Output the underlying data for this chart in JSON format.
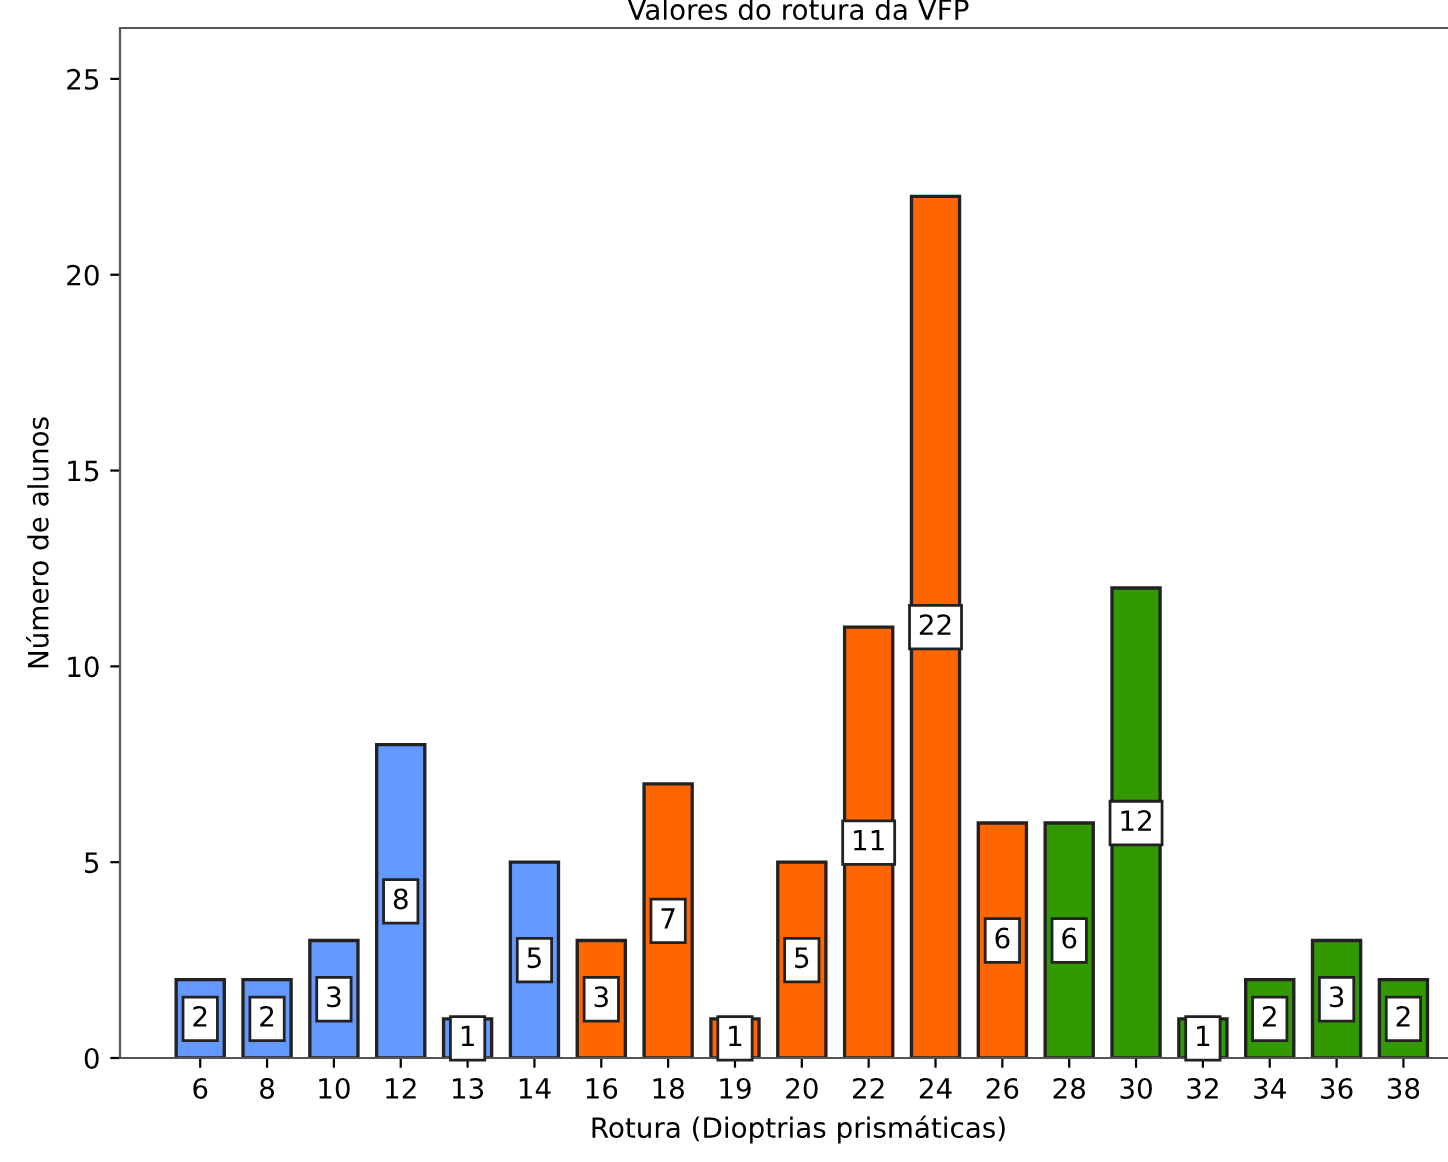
{
  "chart_data": {
    "type": "bar",
    "title": "Valores do rotura da VFP",
    "xlabel": "Rotura (Dioptrias prismáticas)",
    "ylabel": "Número de alunos",
    "categories": [
      "6",
      "8",
      "10",
      "12",
      "13",
      "14",
      "16",
      "18",
      "19",
      "20",
      "22",
      "24",
      "26",
      "28",
      "30",
      "32",
      "34",
      "36",
      "38"
    ],
    "values": [
      2,
      2,
      3,
      8,
      1,
      5,
      3,
      7,
      1,
      5,
      11,
      22,
      6,
      6,
      12,
      1,
      2,
      3,
      2
    ],
    "colors": [
      "#6699ff",
      "#6699ff",
      "#6699ff",
      "#6699ff",
      "#6699ff",
      "#6699ff",
      "#ff6600",
      "#ff6600",
      "#ff6600",
      "#ff6600",
      "#ff6600",
      "#ff6600",
      "#ff6600",
      "#339900",
      "#339900",
      "#339900",
      "#339900",
      "#339900",
      "#339900"
    ],
    "ylim": [
      0,
      26.3
    ],
    "yticks": [
      0,
      5,
      10,
      15,
      20,
      25
    ],
    "data_labels": true,
    "grid": false,
    "legend": false
  }
}
